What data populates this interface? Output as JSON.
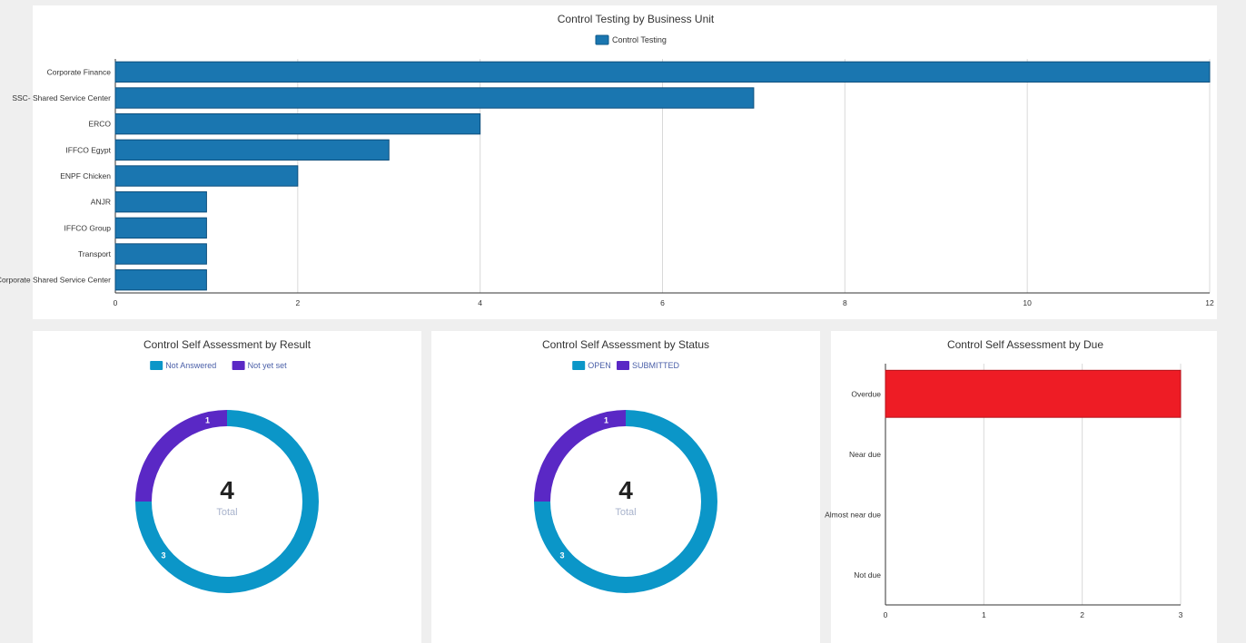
{
  "chart_data": [
    {
      "type": "bar",
      "orientation": "horizontal",
      "title": "Control Testing by Business Unit",
      "legend": [
        "Control Testing"
      ],
      "legend_placement": "top",
      "categories": [
        "Corporate Finance",
        "SSC- Shared Service Center",
        "ERCO",
        "IFFCO Egypt",
        "ENPF Chicken",
        "ANJR",
        "IFFCO Group",
        "Transport",
        "Corporate Shared Service Center"
      ],
      "series": [
        {
          "name": "Control Testing",
          "values": [
            12,
            7,
            4,
            3,
            2,
            1,
            1,
            1,
            1
          ],
          "color": "#1a76b0"
        }
      ],
      "xticks": [
        "0",
        "2",
        "4",
        "6",
        "8",
        "10",
        "12"
      ],
      "xlim": [
        0,
        12
      ],
      "grid": true
    },
    {
      "type": "pie",
      "variant": "donut",
      "title": "Control Self Assessment by Result",
      "legend_placement": "top",
      "slices": [
        {
          "label": "Not Answered",
          "value": 3,
          "color": "#0b96c8"
        },
        {
          "label": "Not yet set",
          "value": 1,
          "color": "#5a28c5"
        }
      ],
      "center_value": "4",
      "center_label": "Total"
    },
    {
      "type": "pie",
      "variant": "donut",
      "title": "Control Self Assessment by Status",
      "legend_placement": "top",
      "slices": [
        {
          "label": "OPEN",
          "value": 3,
          "color": "#0b96c8"
        },
        {
          "label": "SUBMITTED",
          "value": 1,
          "color": "#5a28c5"
        }
      ],
      "center_value": "4",
      "center_label": "Total"
    },
    {
      "type": "bar",
      "orientation": "horizontal",
      "title": "Control Self Assessment by Due",
      "categories": [
        "Overdue",
        "Near due",
        "Almost near due",
        "Not due"
      ],
      "series": [
        {
          "values": [
            3,
            0,
            0,
            0
          ],
          "color": "#ee1c25"
        }
      ],
      "xticks": [
        "0",
        "1",
        "2",
        "3"
      ],
      "xlim": [
        0,
        3
      ],
      "grid": true
    }
  ]
}
